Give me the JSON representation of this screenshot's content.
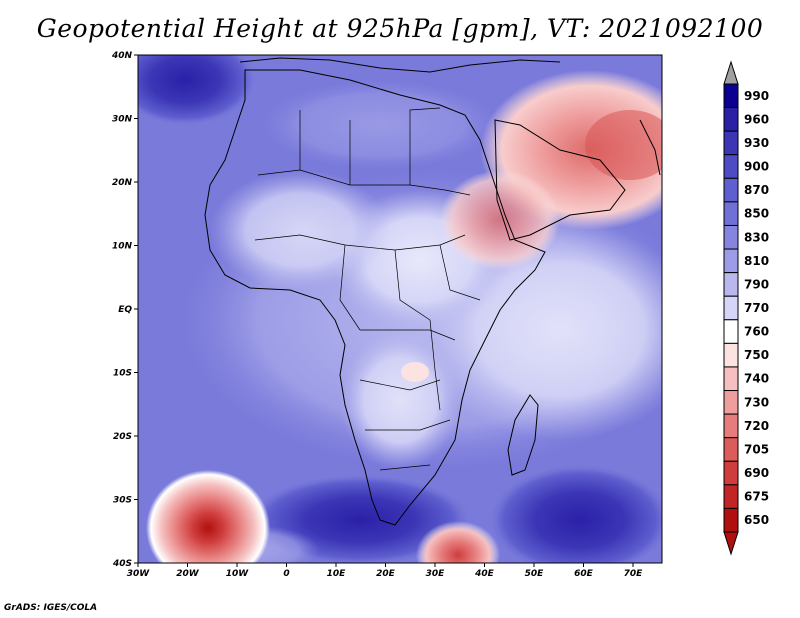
{
  "title": "Geopotential Height at 925hPa [gpm], VT: 2021092100",
  "footer": "GrADS: IGES/COLA",
  "map": {
    "region": "Africa",
    "lat_ticks": [
      "40N",
      "30N",
      "20N",
      "10N",
      "EQ",
      "10S",
      "20S",
      "30S",
      "40S"
    ],
    "lon_ticks": [
      "30W",
      "20W",
      "10W",
      "0",
      "10E",
      "20E",
      "30E",
      "40E",
      "50E",
      "60E",
      "70E"
    ],
    "features": [
      {
        "name": "arabian-low",
        "level": "lowest",
        "desc": "red low over Arabian Peninsula and Iran"
      },
      {
        "name": "south-atlantic-low",
        "level": "lowest",
        "desc": "red low near 34S 15W"
      },
      {
        "name": "south-africa-low",
        "level": "low",
        "desc": "red low near 38S 33E"
      }
    ]
  },
  "colorbar": {
    "levels": [
      "990",
      "960",
      "930",
      "900",
      "870",
      "850",
      "830",
      "810",
      "790",
      "770",
      "760",
      "750",
      "740",
      "730",
      "720",
      "705",
      "690",
      "675",
      "650"
    ],
    "colors": [
      "#0b0090",
      "#2a20a8",
      "#3c36b6",
      "#4e4cc4",
      "#5f5fcf",
      "#7070d7",
      "#8585df",
      "#9d9de7",
      "#b8b8ef",
      "#d5d5f7",
      "#ffffff",
      "#fde2e2",
      "#f6c0c0",
      "#ef9e9e",
      "#e67c7c",
      "#dc5b5b",
      "#d03d3d",
      "#c12525",
      "#b01010"
    ],
    "top_arrow": "#a0a0a0",
    "bottom_arrow": "#b01010"
  }
}
